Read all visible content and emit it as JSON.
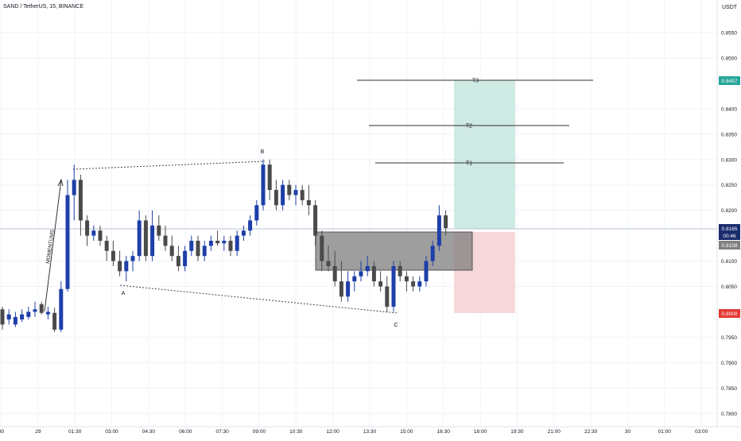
{
  "header": {
    "title": "SAND / TetherUS, 15, BINANCE",
    "currency": "USDT"
  },
  "colors": {
    "bull": "#1e3fa8",
    "bear": "#4a4a4a",
    "grid": "#f0f3fa",
    "text": "#131722",
    "target_zone": "#cfe9e3",
    "stop_zone": "#f8d7da",
    "entry_box": "#7d7d7d",
    "price_line": "#b8c5d6",
    "price_tag": "#1a2b6d",
    "t3_tag": "#26a69a",
    "stop_tag": "#e53935",
    "entry_tag": "#808080"
  },
  "chart_data": {
    "type": "candlestick",
    "title": "SAND / TetherUS, 15, BINANCE",
    "y_axis": {
      "unit": "USDT",
      "ylim": [
        0.7775,
        0.8645
      ],
      "ticks": [
        0.855,
        0.85,
        0.84,
        0.835,
        0.83,
        0.825,
        0.82,
        0.81,
        0.805,
        0.795,
        0.79,
        0.785,
        0.78
      ]
    },
    "x_axis": {
      "ticks": [
        "30",
        "29",
        "01:30",
        "03:00",
        "04:30",
        "06:00",
        "07:30",
        "09:00",
        "10:30",
        "12:00",
        "13:30",
        "15:00",
        "16:30",
        "18:00",
        "19:30",
        "21:00",
        "22:30",
        "30",
        "01:00",
        "03:00"
      ]
    },
    "price_labels": {
      "current_price": "0.8165",
      "countdown": "00:46",
      "entry": "0.8158",
      "target_3": "0.8457",
      "stop": "0.8000"
    },
    "levels": {
      "current": 0.8165,
      "entry": 0.8158,
      "t3": 0.8457,
      "t2": 0.837,
      "t1": 0.8298,
      "stop": 0.8
    },
    "annotations": {
      "targets": [
        "T3",
        "T2",
        "T1"
      ],
      "pattern_points": [
        "A",
        "B",
        "C"
      ],
      "momentum_label": "MOMENTUMS"
    },
    "candles": [
      [
        0.8005,
        0.801,
        0.7965,
        0.7975
      ],
      [
        0.7985,
        0.8005,
        0.7975,
        0.7995
      ],
      [
        0.7975,
        0.8,
        0.797,
        0.799
      ],
      [
        0.7985,
        0.8005,
        0.798,
        0.7995
      ],
      [
        0.799,
        0.801,
        0.7985,
        0.8
      ],
      [
        0.8,
        0.802,
        0.799,
        0.8005
      ],
      [
        0.8015,
        0.802,
        0.7995,
        0.7998
      ],
      [
        0.7995,
        0.801,
        0.7985,
        0.8
      ],
      [
        0.7998,
        0.8008,
        0.796,
        0.7965
      ],
      [
        0.7965,
        0.806,
        0.796,
        0.8045
      ],
      [
        0.8045,
        0.826,
        0.804,
        0.823
      ],
      [
        0.823,
        0.829,
        0.818,
        0.826
      ],
      [
        0.826,
        0.827,
        0.815,
        0.818
      ],
      [
        0.818,
        0.819,
        0.813,
        0.815
      ],
      [
        0.815,
        0.817,
        0.814,
        0.816
      ],
      [
        0.816,
        0.817,
        0.813,
        0.814
      ],
      [
        0.814,
        0.815,
        0.81,
        0.812
      ],
      [
        0.812,
        0.814,
        0.809,
        0.81
      ],
      [
        0.81,
        0.812,
        0.807,
        0.808
      ],
      [
        0.808,
        0.811,
        0.806,
        0.81
      ],
      [
        0.81,
        0.812,
        0.808,
        0.811
      ],
      [
        0.811,
        0.82,
        0.81,
        0.818
      ],
      [
        0.818,
        0.819,
        0.81,
        0.811
      ],
      [
        0.811,
        0.82,
        0.81,
        0.817
      ],
      [
        0.817,
        0.819,
        0.814,
        0.815
      ],
      [
        0.815,
        0.817,
        0.812,
        0.813
      ],
      [
        0.813,
        0.815,
        0.81,
        0.811
      ],
      [
        0.811,
        0.813,
        0.808,
        0.809
      ],
      [
        0.809,
        0.813,
        0.808,
        0.812
      ],
      [
        0.812,
        0.815,
        0.811,
        0.814
      ],
      [
        0.814,
        0.815,
        0.81,
        0.811
      ],
      [
        0.811,
        0.814,
        0.81,
        0.813
      ],
      [
        0.813,
        0.815,
        0.812,
        0.814
      ],
      [
        0.814,
        0.816,
        0.813,
        0.8135
      ],
      [
        0.8135,
        0.815,
        0.812,
        0.814
      ],
      [
        0.814,
        0.815,
        0.811,
        0.812
      ],
      [
        0.812,
        0.816,
        0.811,
        0.815
      ],
      [
        0.815,
        0.817,
        0.814,
        0.816
      ],
      [
        0.816,
        0.819,
        0.815,
        0.818
      ],
      [
        0.818,
        0.822,
        0.817,
        0.821
      ],
      [
        0.821,
        0.83,
        0.82,
        0.829
      ],
      [
        0.829,
        0.83,
        0.822,
        0.824
      ],
      [
        0.824,
        0.826,
        0.82,
        0.821
      ],
      [
        0.821,
        0.826,
        0.82,
        0.825
      ],
      [
        0.825,
        0.826,
        0.822,
        0.823
      ],
      [
        0.823,
        0.825,
        0.821,
        0.824
      ],
      [
        0.824,
        0.825,
        0.821,
        0.822
      ],
      [
        0.822,
        0.825,
        0.819,
        0.821
      ],
      [
        0.821,
        0.822,
        0.813,
        0.815
      ],
      [
        0.815,
        0.816,
        0.808,
        0.81
      ],
      [
        0.81,
        0.813,
        0.808,
        0.809
      ],
      [
        0.809,
        0.812,
        0.805,
        0.806
      ],
      [
        0.806,
        0.81,
        0.802,
        0.803
      ],
      [
        0.803,
        0.808,
        0.802,
        0.806
      ],
      [
        0.806,
        0.808,
        0.804,
        0.807
      ],
      [
        0.807,
        0.81,
        0.806,
        0.808
      ],
      [
        0.808,
        0.811,
        0.807,
        0.809
      ],
      [
        0.809,
        0.81,
        0.805,
        0.806
      ],
      [
        0.806,
        0.808,
        0.804,
        0.805
      ],
      [
        0.805,
        0.807,
        0.8,
        0.801
      ],
      [
        0.801,
        0.81,
        0.8,
        0.809
      ],
      [
        0.809,
        0.81,
        0.806,
        0.807
      ],
      [
        0.807,
        0.808,
        0.804,
        0.806
      ],
      [
        0.806,
        0.807,
        0.804,
        0.805
      ],
      [
        0.805,
        0.807,
        0.804,
        0.806
      ],
      [
        0.806,
        0.811,
        0.805,
        0.81
      ],
      [
        0.81,
        0.814,
        0.809,
        0.813
      ],
      [
        0.813,
        0.821,
        0.812,
        0.819
      ],
      [
        0.819,
        0.82,
        0.815,
        0.8165
      ]
    ]
  }
}
